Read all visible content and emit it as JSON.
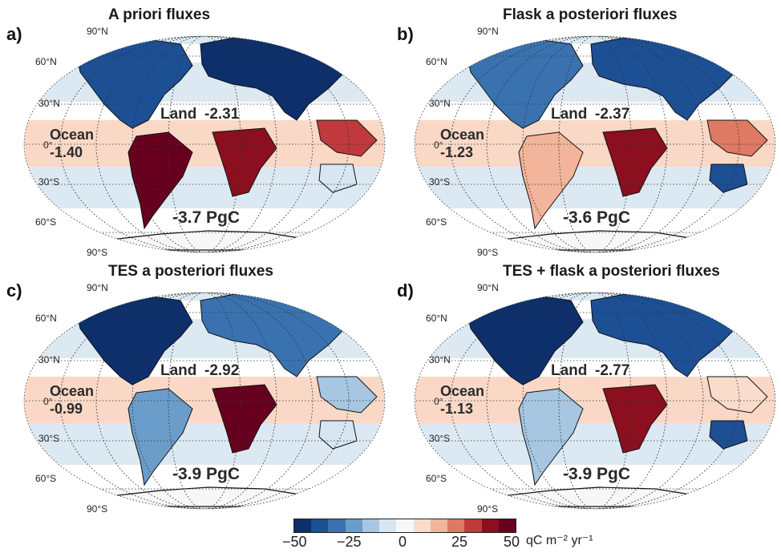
{
  "panels": [
    {
      "letter": "a)",
      "title": "A priori fluxes",
      "land_label": "Land",
      "land_value": "-2.31",
      "ocean_label": "Ocean",
      "ocean_value": "-1.40",
      "total": "-3.7 PgC"
    },
    {
      "letter": "b)",
      "title": "Flask a posteriori fluxes",
      "land_label": "Land",
      "land_value": "-2.37",
      "ocean_label": "Ocean",
      "ocean_value": "-1.23",
      "total": "-3.6 PgC"
    },
    {
      "letter": "c)",
      "title": "TES a posteriori fluxes",
      "land_label": "Land",
      "land_value": "-2.92",
      "ocean_label": "Ocean",
      "ocean_value": "-0.99",
      "total": "-3.9 PgC"
    },
    {
      "letter": "d)",
      "title": "TES + flask a posteriori fluxes",
      "land_label": "Land",
      "land_value": "-2.77",
      "ocean_label": "Ocean",
      "ocean_value": "-1.13",
      "total": "-3.9 PgC"
    }
  ],
  "lat_labels": [
    "90°N",
    "60°N",
    "30°N",
    "0°",
    "30°S",
    "60°S",
    "90°S"
  ],
  "colorbar": {
    "ticks": [
      "−50",
      "−25",
      "0",
      "25",
      "50"
    ],
    "units": "qC m⁻² yr⁻¹",
    "colors": [
      "#0d2f6b",
      "#1c4f94",
      "#3a72b0",
      "#6b9dcb",
      "#a6c6e1",
      "#d6e6f2",
      "#f7f7f7",
      "#f9dccb",
      "#f2b49a",
      "#de7a64",
      "#c0393c",
      "#8b0f1f",
      "#67001f"
    ]
  }
}
